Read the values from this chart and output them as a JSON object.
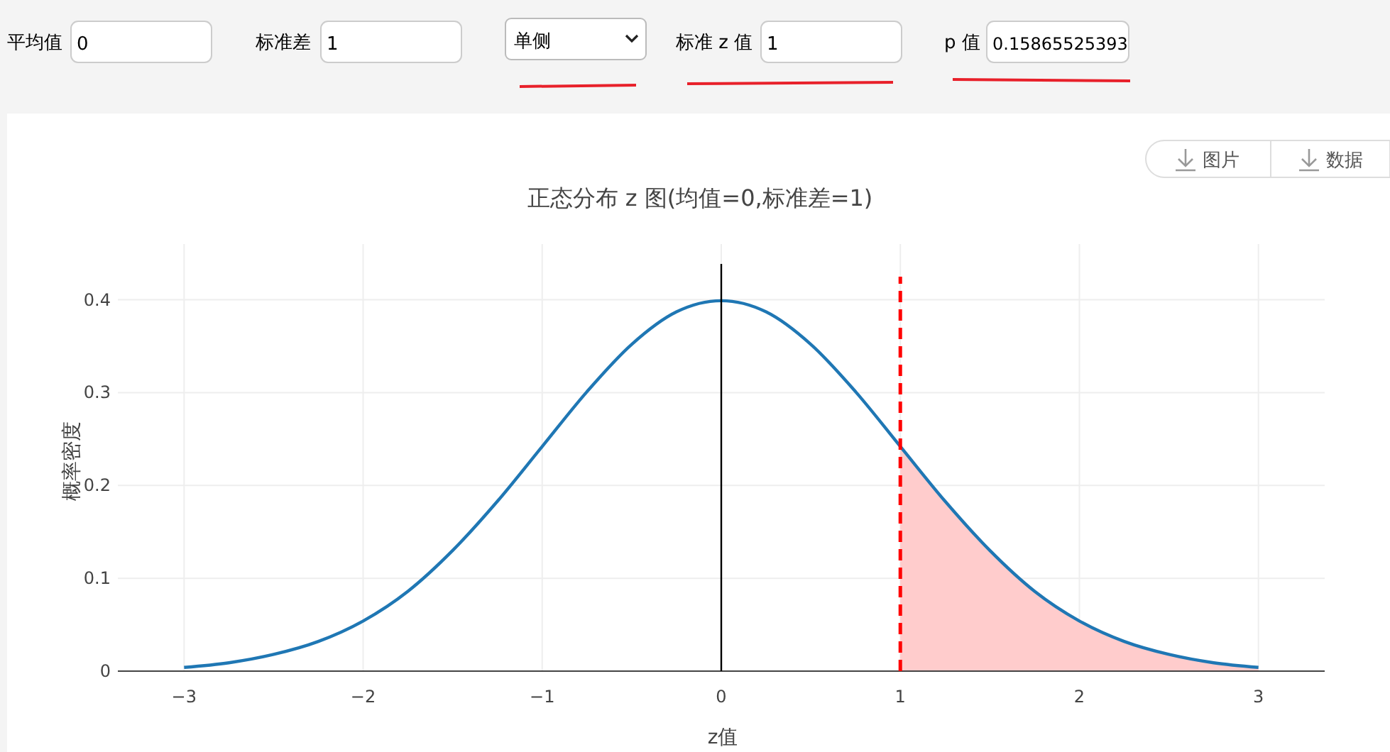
{
  "chart_data": {
    "type": "line",
    "title": "正态分布 z 图(均值=0,标准差=1)",
    "xlabel": "z值",
    "ylabel": "概率密度",
    "xlim": [
      -3.37,
      3.37
    ],
    "ylim": [
      0,
      0.46
    ],
    "xticks": [
      {
        "value": -3,
        "label": "−3"
      },
      {
        "value": -2,
        "label": "−2"
      },
      {
        "value": -1,
        "label": "−1"
      },
      0,
      1,
      2,
      3
    ],
    "yticks": [
      0,
      0.1,
      0.2,
      0.3,
      0.4
    ],
    "grid": true,
    "series": [
      {
        "type": "area",
        "color": "#ffcccc",
        "x": [
          1,
          1.25,
          1.5,
          1.75,
          2,
          2.25,
          2.5,
          2.75,
          3
        ],
        "values": [
          0.242,
          0.183,
          0.13,
          0.086,
          0.054,
          0.032,
          0.018,
          0.009,
          0.004
        ]
      },
      {
        "color": "#1f77b4",
        "x": [
          -3,
          -2.75,
          -2.5,
          -2.25,
          -2,
          -1.75,
          -1.5,
          -1.25,
          -1,
          -0.75,
          -0.5,
          -0.25,
          0,
          0.25,
          0.5,
          0.75,
          1,
          1.25,
          1.5,
          1.75,
          2,
          2.25,
          2.5,
          2.75,
          3
        ],
        "values": [
          0.004,
          0.009,
          0.018,
          0.032,
          0.054,
          0.086,
          0.13,
          0.183,
          0.242,
          0.301,
          0.352,
          0.387,
          0.399,
          0.387,
          0.352,
          0.301,
          0.242,
          0.183,
          0.13,
          0.086,
          0.054,
          0.032,
          0.018,
          0.009,
          0.004
        ]
      }
    ],
    "ref_lines": [
      {
        "axis": "x",
        "value": 0,
        "color": "#000000",
        "line_style": "solid"
      },
      {
        "axis": "x",
        "value": 1,
        "color": "#ff0000",
        "line_style": "dashed"
      }
    ],
    "annotations": [
      "平均值",
      "0",
      "标准差",
      "1",
      "单侧",
      "标准 z 值",
      "1",
      "p 值",
      "0.15865525393",
      "图片",
      "数据"
    ]
  }
}
